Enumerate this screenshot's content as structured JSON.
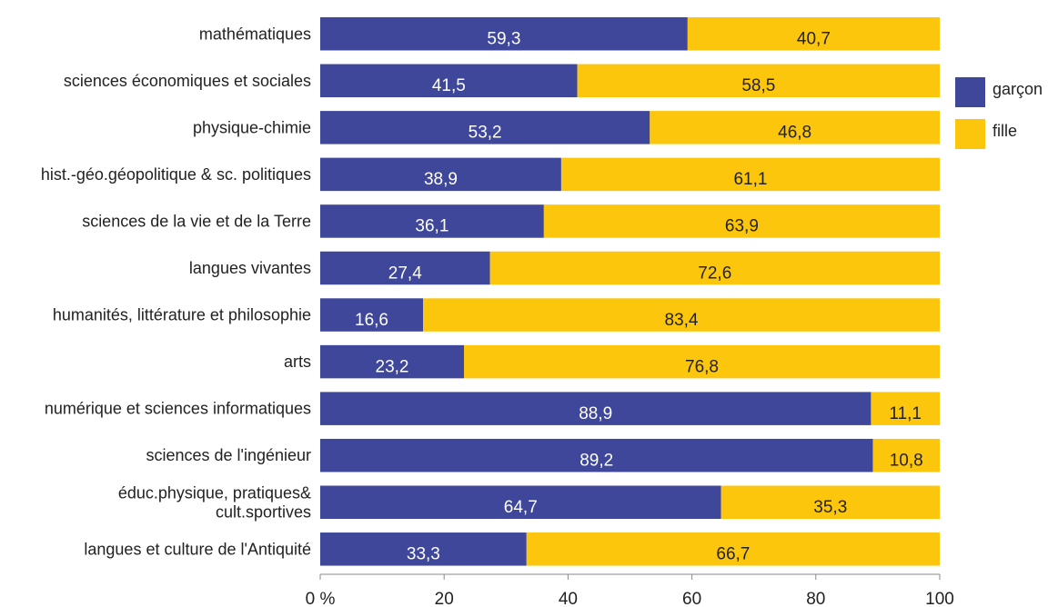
{
  "chart_data": {
    "type": "bar",
    "orientation": "horizontal",
    "stacked": true,
    "categories": [
      [
        "mathématiques"
      ],
      [
        "sciences économiques et sociales"
      ],
      [
        "physique-chimie"
      ],
      [
        "hist.-géo.géopolitique & sc. politiques"
      ],
      [
        "sciences de la vie et de la Terre"
      ],
      [
        "langues vivantes"
      ],
      [
        "humanités, littérature et philosophie"
      ],
      [
        "arts"
      ],
      [
        "numérique et sciences informatiques"
      ],
      [
        "sciences de l'ingénieur"
      ],
      [
        "éduc.physique, pratiques&",
        "cult.sportives"
      ],
      [
        "langues et culture de l'Antiquité"
      ]
    ],
    "series": [
      {
        "name": "garçon",
        "color": "#3f479b",
        "values": [
          59.3,
          41.5,
          53.2,
          38.9,
          36.1,
          27.4,
          16.6,
          23.2,
          88.9,
          89.2,
          64.7,
          33.3
        ],
        "labels": [
          "59,3",
          "41,5",
          "53,2",
          "38,9",
          "36,1",
          "27,4",
          "16,6",
          "23,2",
          "88,9",
          "89,2",
          "64,7",
          "33,3"
        ]
      },
      {
        "name": "fille",
        "color": "#fcc60d",
        "values": [
          40.7,
          58.5,
          46.8,
          61.1,
          63.9,
          72.6,
          83.4,
          76.8,
          11.1,
          10.8,
          35.3,
          66.7
        ],
        "labels": [
          "40,7",
          "58,5",
          "46,8",
          "61,1",
          "63,9",
          "72,6",
          "83,4",
          "76,8",
          "11,1",
          "10,8",
          "35,3",
          "66,7"
        ]
      }
    ],
    "x_ticks": [
      0,
      20,
      40,
      60,
      80,
      100
    ],
    "x_tick_labels": [
      "0 %",
      "20",
      "40",
      "60",
      "80",
      "100"
    ],
    "xlim": [
      0,
      100
    ],
    "grid": false,
    "legend": "right"
  }
}
